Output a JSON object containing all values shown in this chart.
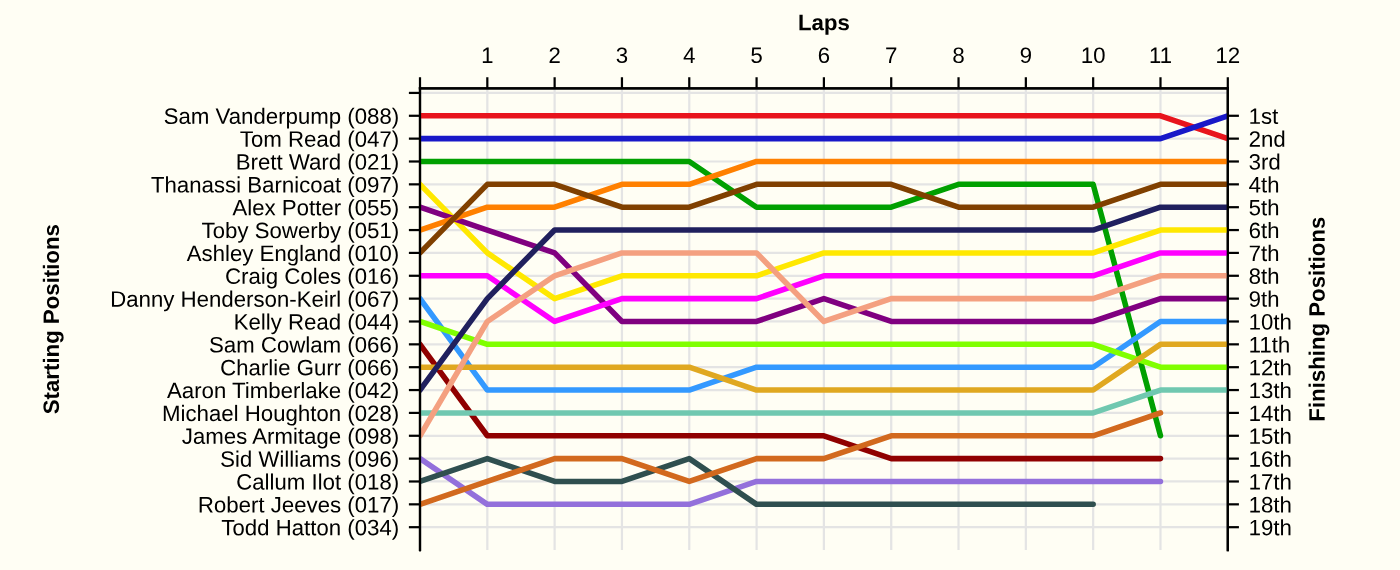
{
  "chart_data": {
    "type": "line",
    "xlabel": "Laps",
    "annotations": [
      "Starting Positions"
    ],
    "y2label": "Finishing Positions",
    "x": [
      0,
      1,
      2,
      3,
      4,
      5,
      6,
      7,
      8,
      9,
      10,
      11,
      12
    ],
    "xlim": [
      0,
      12
    ],
    "xticks": [
      {
        "value": 0,
        "label": null
      },
      1,
      2,
      3,
      4,
      5,
      6,
      7,
      8,
      9,
      10,
      11,
      12
    ],
    "y_categories": [
      null,
      "Sam Vanderpump (088)",
      "Tom Read (047)",
      "Brett Ward (021)",
      "Thanassi Barnicoat (097)",
      "Alex Potter (055)",
      "Toby Sowerby (051)",
      "Ashley England (010)",
      "Craig Coles (016)",
      "Danny Henderson-Keirl (067)",
      "Kelly Read (044)",
      "Sam Cowlam (066)",
      "Charlie Gurr (066)",
      "Aaron Timberlake (042)",
      "Michael Houghton (028)",
      "James Armitage (098)",
      "Sid Williams (096)",
      "Callum Ilot (018)",
      "Robert Jeeves (017)",
      "Todd Hatton (034)"
    ],
    "y2lim": [
      20,
      -0.2
    ],
    "y2ticks": [
      {
        "value": 1,
        "label": "1st"
      },
      {
        "value": 2,
        "label": "2nd"
      },
      {
        "value": 3,
        "label": "3rd"
      },
      {
        "value": 4,
        "label": "4th"
      },
      {
        "value": 5,
        "label": "5th"
      },
      {
        "value": 6,
        "label": "6th"
      },
      {
        "value": 7,
        "label": "7th"
      },
      {
        "value": 8,
        "label": "8th"
      },
      {
        "value": 9,
        "label": "9th"
      },
      {
        "value": 10,
        "label": "10th"
      },
      {
        "value": 11,
        "label": "11th"
      },
      {
        "value": 12,
        "label": "12th"
      },
      {
        "value": 13,
        "label": "13th"
      },
      {
        "value": 14,
        "label": "14th"
      },
      {
        "value": 15,
        "label": "15th"
      },
      {
        "value": 16,
        "label": "16th"
      },
      {
        "value": 17,
        "label": "17th"
      },
      {
        "value": 18,
        "label": "18th"
      },
      {
        "value": 19,
        "label": "19th"
      }
    ],
    "grid": true,
    "marker": "none",
    "line_style": "solid",
    "series": [
      {
        "color": "#e8141c",
        "axis": "y2",
        "values": [
          1,
          1,
          1,
          1,
          1,
          1,
          1,
          1,
          1,
          1,
          1,
          1,
          2
        ]
      },
      {
        "color": "#1818c8",
        "axis": "y2",
        "values": [
          2,
          2,
          2,
          2,
          2,
          2,
          2,
          2,
          2,
          2,
          2,
          2,
          1
        ]
      },
      {
        "color": "#00a000",
        "axis": "y2",
        "values": [
          3,
          3,
          3,
          3,
          3,
          5,
          5,
          5,
          4,
          4,
          4,
          15,
          null
        ]
      },
      {
        "color": "#ffe800",
        "axis": "y2",
        "values": [
          4,
          7,
          9,
          8,
          8,
          8,
          7,
          7,
          7,
          7,
          7,
          6,
          6
        ]
      },
      {
        "color": "#800080",
        "axis": "y2",
        "values": [
          5,
          6,
          7,
          10,
          10,
          10,
          9,
          10,
          10,
          10,
          10,
          9,
          9
        ]
      },
      {
        "color": "#ff8000",
        "axis": "y2",
        "values": [
          6,
          5,
          5,
          4,
          4,
          3,
          3,
          3,
          3,
          3,
          3,
          3,
          3
        ]
      },
      {
        "color": "#804000",
        "axis": "y2",
        "values": [
          7,
          4,
          4,
          5,
          5,
          4,
          4,
          4,
          5,
          5,
          5,
          4,
          4
        ]
      },
      {
        "color": "#ff00ff",
        "axis": "y2",
        "values": [
          8,
          8,
          10,
          9,
          9,
          9,
          8,
          8,
          8,
          8,
          8,
          7,
          7
        ]
      },
      {
        "color": "#3399ff",
        "axis": "y2",
        "values": [
          9,
          13,
          13,
          13,
          13,
          12,
          12,
          12,
          12,
          12,
          12,
          10,
          10
        ]
      },
      {
        "color": "#80ff00",
        "axis": "y2",
        "values": [
          10,
          11,
          11,
          11,
          11,
          11,
          11,
          11,
          11,
          11,
          11,
          12,
          12
        ]
      },
      {
        "color": "#900000",
        "axis": "y2",
        "values": [
          11,
          15,
          15,
          15,
          15,
          15,
          15,
          16,
          16,
          16,
          16,
          16,
          null
        ]
      },
      {
        "color": "#e0a820",
        "axis": "y2",
        "values": [
          12,
          12,
          12,
          12,
          12,
          13,
          13,
          13,
          13,
          13,
          13,
          11,
          11
        ]
      },
      {
        "color": "#20205e",
        "axis": "y2",
        "values": [
          13,
          9,
          6,
          6,
          6,
          6,
          6,
          6,
          6,
          6,
          6,
          5,
          5
        ]
      },
      {
        "color": "#70c8b0",
        "axis": "y2",
        "values": [
          14,
          14,
          14,
          14,
          14,
          14,
          14,
          14,
          14,
          14,
          14,
          13,
          13
        ]
      },
      {
        "color": "#f4a080",
        "axis": "y2",
        "values": [
          15,
          10,
          8,
          7,
          7,
          7,
          10,
          9,
          9,
          9,
          9,
          8,
          8
        ]
      },
      {
        "color": "#9370db",
        "axis": "y2",
        "values": [
          16,
          18,
          18,
          18,
          18,
          17,
          17,
          17,
          17,
          17,
          17,
          17,
          null
        ]
      },
      {
        "color": "#2f4f4f",
        "axis": "y2",
        "values": [
          17,
          16,
          17,
          17,
          16,
          18,
          18,
          18,
          18,
          18,
          18,
          null,
          null
        ]
      },
      {
        "color": "#d2691e",
        "axis": "y2",
        "values": [
          18,
          17,
          16,
          16,
          17,
          16,
          16,
          15,
          15,
          15,
          15,
          14,
          null
        ]
      }
    ]
  }
}
